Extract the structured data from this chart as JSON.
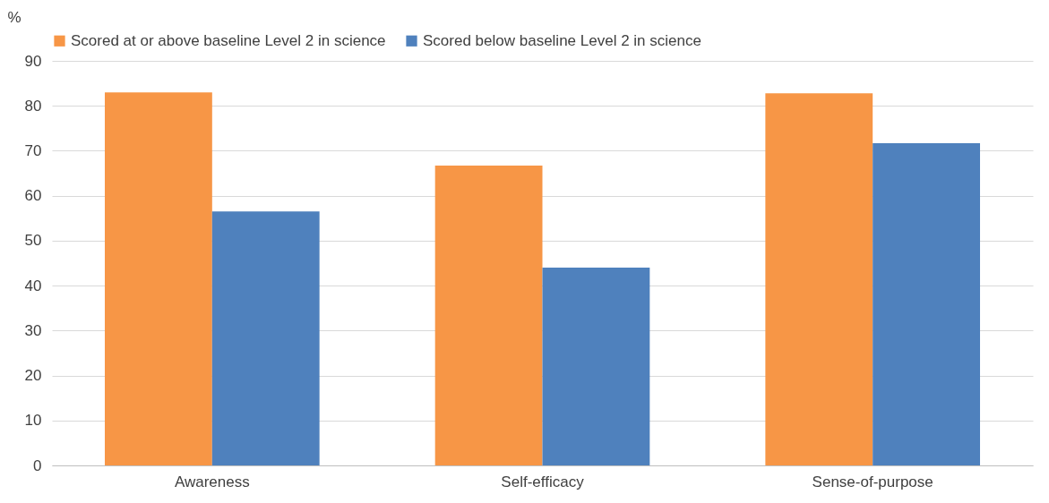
{
  "chart_data": {
    "type": "bar",
    "ylabel": "%",
    "categories": [
      "Awareness",
      "Self-efficacy",
      "Sense-of-purpose"
    ],
    "series": [
      {
        "name": "Scored at or above baseline Level 2 in science",
        "color": "#f79646",
        "values": [
          83.0,
          66.7,
          82.8
        ]
      },
      {
        "name": "Scored below baseline Level 2 in science",
        "color": "#4f81bd",
        "values": [
          56.5,
          44.0,
          71.7
        ]
      }
    ],
    "ylim": [
      0,
      90
    ],
    "yticks": [
      0,
      10,
      20,
      30,
      40,
      50,
      60,
      70,
      80,
      90
    ],
    "grid": "y",
    "legend": "top"
  }
}
